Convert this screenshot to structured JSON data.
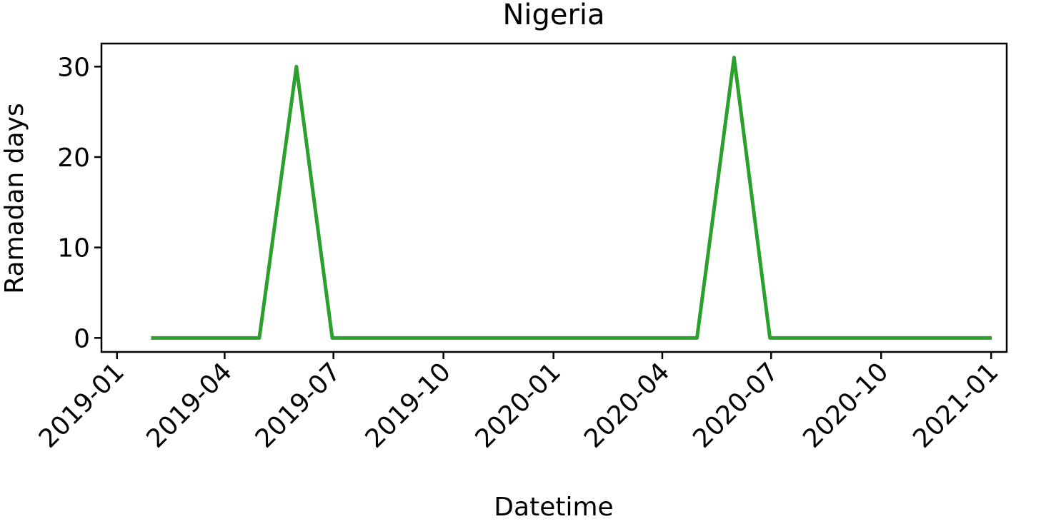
{
  "chart_data": {
    "type": "line",
    "title": "Nigeria",
    "xlabel": "Datetime",
    "ylabel": "Ramadan days",
    "x_tick_labels": [
      "2019-01",
      "2019-04",
      "2019-07",
      "2019-10",
      "2020-01",
      "2020-04",
      "2020-07",
      "2020-10",
      "2021-01"
    ],
    "y_tick_labels": [
      "0",
      "10",
      "20",
      "30"
    ],
    "y_ticks": [
      0,
      10,
      20,
      30
    ],
    "xlim": [
      "2018-12-19",
      "2021-01-14"
    ],
    "ylim": [
      -1.55,
      32.55
    ],
    "grid": false,
    "series": [
      {
        "color": "#2ca02c",
        "x": [
          "2019-01-31",
          "2019-02-28",
          "2019-03-31",
          "2019-04-30",
          "2019-05-31",
          "2019-06-30",
          "2019-07-31",
          "2019-08-31",
          "2019-09-30",
          "2019-10-31",
          "2019-11-30",
          "2019-12-31",
          "2020-01-31",
          "2020-02-29",
          "2020-03-31",
          "2020-04-30",
          "2020-05-31",
          "2020-06-30",
          "2020-07-31",
          "2020-08-31",
          "2020-09-30",
          "2020-10-31",
          "2020-11-30",
          "2020-12-31"
        ],
        "values": [
          0,
          0,
          0,
          0,
          30,
          0,
          0,
          0,
          0,
          0,
          0,
          0,
          0,
          0,
          0,
          0,
          31,
          0,
          0,
          0,
          0,
          0,
          0,
          0
        ]
      }
    ]
  }
}
